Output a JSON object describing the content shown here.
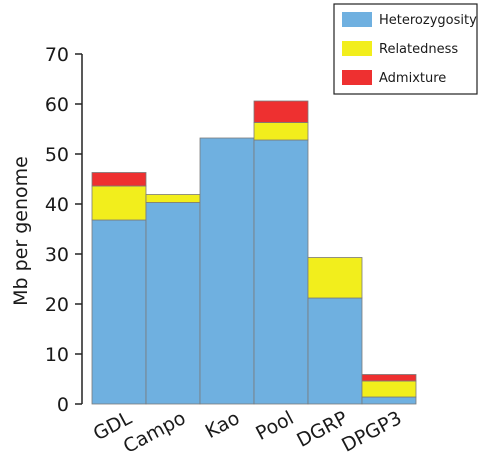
{
  "chart_data": {
    "type": "bar",
    "stacked": true,
    "title": "",
    "xlabel": "",
    "ylabel": "Mb per genome",
    "ylim": [
      0,
      70
    ],
    "yticks": [
      0,
      10,
      20,
      30,
      40,
      50,
      60,
      70
    ],
    "categories": [
      "GDL",
      "Campo",
      "Kao",
      "Pool",
      "DGRP",
      "DPGP3"
    ],
    "series": [
      {
        "name": "Heterozygosity",
        "color": "#6fb0e0",
        "values": [
          36.8,
          40.3,
          53.2,
          52.8,
          21.2,
          1.4
        ]
      },
      {
        "name": "Relatedness",
        "color": "#f2ee1c",
        "values": [
          6.8,
          1.6,
          0.0,
          3.5,
          8.1,
          3.2
        ]
      },
      {
        "name": "Admixture",
        "color": "#ee3030",
        "values": [
          2.7,
          0.0,
          0.0,
          4.3,
          0.0,
          1.3
        ]
      }
    ],
    "legend_position": "top-right",
    "grid": false
  }
}
